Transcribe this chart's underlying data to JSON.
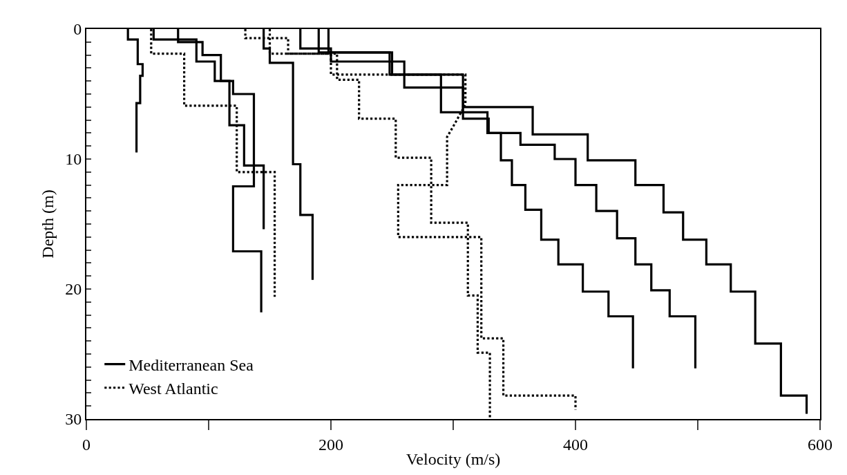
{
  "chart_data": {
    "type": "line",
    "xlabel": "Velocity (m/s)",
    "ylabel": "Depth (m)",
    "xlim": [
      0,
      600
    ],
    "xticks": [
      0,
      {
        "value": 100,
        "label": null
      },
      200,
      {
        "value": 300,
        "label": null
      },
      400,
      {
        "value": 500,
        "label": null
      },
      600
    ],
    "ylim": [
      30,
      0
    ],
    "yticks": [
      0,
      {
        "value": 1,
        "label": null
      },
      {
        "value": 2,
        "label": null
      },
      {
        "value": 3,
        "label": null
      },
      {
        "value": 4,
        "label": null
      },
      {
        "value": 5,
        "label": null
      },
      {
        "value": 6,
        "label": null
      },
      {
        "value": 7,
        "label": null
      },
      {
        "value": 8,
        "label": null
      },
      {
        "value": 9,
        "label": null
      },
      10,
      {
        "value": 11,
        "label": null
      },
      {
        "value": 12,
        "label": null
      },
      {
        "value": 13,
        "label": null
      },
      {
        "value": 14,
        "label": null
      },
      {
        "value": 15,
        "label": null
      },
      {
        "value": 16,
        "label": null
      },
      {
        "value": 17,
        "label": null
      },
      {
        "value": 18,
        "label": null
      },
      {
        "value": 19,
        "label": null
      },
      20,
      {
        "value": 21,
        "label": null
      },
      {
        "value": 22,
        "label": null
      },
      {
        "value": 23,
        "label": null
      },
      {
        "value": 24,
        "label": null
      },
      {
        "value": 25,
        "label": null
      },
      {
        "value": 26,
        "label": null
      },
      {
        "value": 27,
        "label": null
      },
      {
        "value": 28,
        "label": null
      },
      {
        "value": 29,
        "label": null
      },
      30
    ],
    "grid": false,
    "legend": "bottom left",
    "series": [
      {
        "name": "Mediterranean Sea",
        "color": "#000000",
        "line_style": "solid",
        "x": [
          34,
          34,
          42,
          42,
          46,
          46,
          44,
          44,
          41,
          41
        ],
        "values": [
          0,
          0.8,
          0.8,
          2.7,
          2.7,
          3.6,
          3.6,
          5.7,
          5.7,
          9.5
        ]
      },
      {
        "color": "#000000",
        "line_style": "solid",
        "x": [
          55,
          55,
          90,
          90,
          105,
          105,
          120,
          120,
          137,
          137,
          120,
          120,
          143,
          143
        ],
        "values": [
          0,
          0.8,
          0.8,
          2.5,
          2.5,
          4,
          4,
          5,
          5,
          12.1,
          12.1,
          17.1,
          17.1,
          21.8
        ]
      },
      {
        "color": "#000000",
        "line_style": "solid",
        "x": [
          75,
          75,
          95,
          95,
          110,
          110,
          117,
          117,
          129,
          129,
          145,
          145
        ],
        "values": [
          0,
          1,
          1,
          2,
          2,
          4,
          4,
          7.4,
          7.4,
          10.5,
          10.5,
          15.4
        ]
      },
      {
        "color": "#000000",
        "line_style": "solid",
        "x": [
          145,
          145,
          150,
          150,
          169,
          169,
          175,
          175,
          185,
          185
        ],
        "values": [
          0,
          1.5,
          1.5,
          2.6,
          2.6,
          10.4,
          10.4,
          14.3,
          14.3,
          19.3
        ]
      },
      {
        "color": "#000000",
        "line_style": "solid",
        "x": [
          190,
          190,
          248,
          248,
          290,
          290,
          328,
          328,
          339,
          339,
          348,
          348,
          359,
          359,
          372,
          372,
          386,
          386,
          406,
          406,
          427,
          427,
          447,
          447
        ],
        "values": [
          0,
          1.8,
          1.8,
          3.5,
          3.5,
          6.4,
          6.4,
          8.0,
          8.0,
          10.1,
          10.1,
          12.0,
          12.0,
          13.9,
          13.9,
          16.2,
          16.2,
          18.1,
          18.1,
          20.2,
          20.2,
          22.1,
          22.1,
          26.1
        ]
      },
      {
        "color": "#000000",
        "line_style": "solid",
        "x": [
          175,
          175,
          200,
          200,
          260,
          260,
          308,
          308,
          329,
          329,
          355,
          355,
          383,
          383,
          400,
          400,
          417,
          417,
          434,
          434,
          449,
          449,
          462,
          462,
          477,
          477,
          498,
          498
        ],
        "values": [
          0,
          1.5,
          1.5,
          2.5,
          2.5,
          4.5,
          4.5,
          6.9,
          6.9,
          8.0,
          8.0,
          8.9,
          8.9,
          10.0,
          10.0,
          12.0,
          12.0,
          14.0,
          14.0,
          16.1,
          16.1,
          18.1,
          18.1,
          20.1,
          20.1,
          22.1,
          22.1,
          26.1
        ]
      },
      {
        "color": "#000000",
        "line_style": "solid",
        "x": [
          198,
          198,
          250,
          250,
          308,
          308,
          365,
          365,
          410,
          410,
          449,
          449,
          472,
          472,
          488,
          488,
          507,
          507,
          527,
          527,
          547,
          547,
          568,
          568,
          589,
          589
        ],
        "values": [
          0,
          1.8,
          1.8,
          3.5,
          3.5,
          6.0,
          6.0,
          8.1,
          8.1,
          10.1,
          10.1,
          12.0,
          12.0,
          14.1,
          14.1,
          16.2,
          16.2,
          18.1,
          18.1,
          20.2,
          20.2,
          24.2,
          24.2,
          28.2,
          28.2,
          29.6
        ]
      },
      {
        "name": "West Atlantic",
        "color": "#000000",
        "line_style": "dotted",
        "x": [
          53,
          53,
          80,
          80,
          123,
          123,
          154,
          154
        ],
        "values": [
          0,
          1.9,
          1.9,
          5.9,
          5.9,
          11.0,
          11.0,
          20.6
        ]
      },
      {
        "color": "#000000",
        "line_style": "dotted",
        "x": [
          150,
          150,
          205,
          205,
          223,
          223,
          253,
          253,
          282,
          282,
          312,
          312,
          320,
          320,
          330,
          330
        ],
        "values": [
          0,
          1.9,
          1.9,
          3.9,
          3.9,
          6.9,
          6.9,
          9.9,
          9.9,
          14.9,
          14.9,
          20.5,
          20.5,
          24.9,
          24.9,
          30
        ]
      },
      {
        "color": "#000000",
        "line_style": "dotted",
        "x": [
          130,
          130,
          165,
          165,
          200,
          200,
          310,
          310,
          300,
          295,
          295,
          255,
          255,
          323,
          323,
          341,
          341,
          400,
          400
        ],
        "values": [
          0,
          0.7,
          0.7,
          1.9,
          1.9,
          3.5,
          3.5,
          5.8,
          7.5,
          8.3,
          12.0,
          12.0,
          16.0,
          16.0,
          23.8,
          23.8,
          28.2,
          28.2,
          29.3
        ]
      }
    ]
  }
}
